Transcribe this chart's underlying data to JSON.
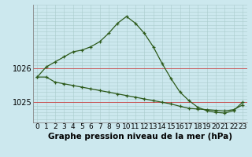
{
  "title": "Graphe pression niveau de la mer (hPa)",
  "bg_color": "#cce8ee",
  "line_color": "#2d5a1b",
  "xlim": [
    -0.5,
    23.5
  ],
  "ylim": [
    1024.4,
    1027.9
  ],
  "yticks": [
    1025,
    1026
  ],
  "xticks": [
    0,
    1,
    2,
    3,
    4,
    5,
    6,
    7,
    8,
    9,
    10,
    11,
    12,
    13,
    14,
    15,
    16,
    17,
    18,
    19,
    20,
    21,
    22,
    23
  ],
  "minor_y": [
    1024.4,
    1024.5,
    1024.6,
    1024.7,
    1024.8,
    1024.9,
    1025.0,
    1025.1,
    1025.2,
    1025.3,
    1025.4,
    1025.5,
    1025.6,
    1025.7,
    1025.8,
    1025.9,
    1026.0,
    1026.1,
    1026.2,
    1026.3,
    1026.4,
    1026.5,
    1026.6,
    1026.7,
    1026.8,
    1026.9,
    1027.0,
    1027.1,
    1027.2,
    1027.3,
    1027.4,
    1027.5,
    1027.6,
    1027.7,
    1027.8,
    1027.9
  ],
  "series1_x": [
    0,
    1,
    2,
    3,
    4,
    5,
    6,
    7,
    8,
    9,
    10,
    11,
    12,
    13,
    14,
    15,
    16,
    17,
    18,
    19,
    20,
    21,
    22,
    23
  ],
  "series1_y": [
    1025.75,
    1026.05,
    1026.2,
    1026.35,
    1026.5,
    1026.55,
    1026.65,
    1026.8,
    1027.05,
    1027.35,
    1027.55,
    1027.35,
    1027.05,
    1026.65,
    1026.15,
    1025.7,
    1025.3,
    1025.05,
    1024.85,
    1024.75,
    1024.7,
    1024.68,
    1024.75,
    1025.0
  ],
  "series2_x": [
    0,
    1,
    2,
    3,
    4,
    5,
    6,
    7,
    8,
    9,
    10,
    11,
    12,
    13,
    14,
    15,
    16,
    17,
    18,
    19,
    20,
    21,
    22,
    23
  ],
  "series2_y": [
    1025.75,
    1025.75,
    1025.6,
    1025.55,
    1025.5,
    1025.45,
    1025.4,
    1025.35,
    1025.3,
    1025.25,
    1025.2,
    1025.15,
    1025.1,
    1025.05,
    1025.0,
    1024.95,
    1024.88,
    1024.82,
    1024.8,
    1024.78,
    1024.76,
    1024.74,
    1024.78,
    1024.92
  ],
  "title_fontsize": 7.5,
  "tick_fontsize": 6.5
}
